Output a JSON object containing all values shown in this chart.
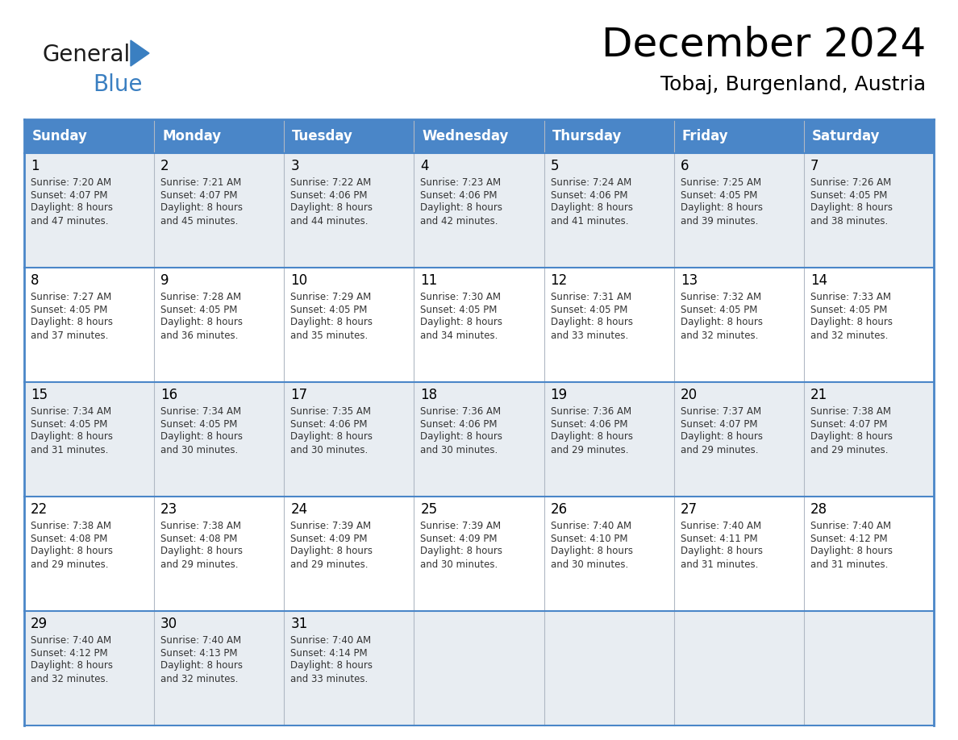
{
  "title": "December 2024",
  "subtitle": "Tobaj, Burgenland, Austria",
  "header_color": "#4a86c8",
  "header_text_color": "#ffffff",
  "row_colors": [
    "#e8edf2",
    "#ffffff"
  ],
  "border_color": "#4a86c8",
  "cell_border_color": "#cccccc",
  "day_names": [
    "Sunday",
    "Monday",
    "Tuesday",
    "Wednesday",
    "Thursday",
    "Friday",
    "Saturday"
  ],
  "days": [
    {
      "day": 1,
      "col": 0,
      "row": 0,
      "sunrise": "7:20 AM",
      "sunset": "4:07 PM",
      "daylight_h": "8 hours",
      "daylight_m": "and 47 minutes."
    },
    {
      "day": 2,
      "col": 1,
      "row": 0,
      "sunrise": "7:21 AM",
      "sunset": "4:07 PM",
      "daylight_h": "8 hours",
      "daylight_m": "and 45 minutes."
    },
    {
      "day": 3,
      "col": 2,
      "row": 0,
      "sunrise": "7:22 AM",
      "sunset": "4:06 PM",
      "daylight_h": "8 hours",
      "daylight_m": "and 44 minutes."
    },
    {
      "day": 4,
      "col": 3,
      "row": 0,
      "sunrise": "7:23 AM",
      "sunset": "4:06 PM",
      "daylight_h": "8 hours",
      "daylight_m": "and 42 minutes."
    },
    {
      "day": 5,
      "col": 4,
      "row": 0,
      "sunrise": "7:24 AM",
      "sunset": "4:06 PM",
      "daylight_h": "8 hours",
      "daylight_m": "and 41 minutes."
    },
    {
      "day": 6,
      "col": 5,
      "row": 0,
      "sunrise": "7:25 AM",
      "sunset": "4:05 PM",
      "daylight_h": "8 hours",
      "daylight_m": "and 39 minutes."
    },
    {
      "day": 7,
      "col": 6,
      "row": 0,
      "sunrise": "7:26 AM",
      "sunset": "4:05 PM",
      "daylight_h": "8 hours",
      "daylight_m": "and 38 minutes."
    },
    {
      "day": 8,
      "col": 0,
      "row": 1,
      "sunrise": "7:27 AM",
      "sunset": "4:05 PM",
      "daylight_h": "8 hours",
      "daylight_m": "and 37 minutes."
    },
    {
      "day": 9,
      "col": 1,
      "row": 1,
      "sunrise": "7:28 AM",
      "sunset": "4:05 PM",
      "daylight_h": "8 hours",
      "daylight_m": "and 36 minutes."
    },
    {
      "day": 10,
      "col": 2,
      "row": 1,
      "sunrise": "7:29 AM",
      "sunset": "4:05 PM",
      "daylight_h": "8 hours",
      "daylight_m": "and 35 minutes."
    },
    {
      "day": 11,
      "col": 3,
      "row": 1,
      "sunrise": "7:30 AM",
      "sunset": "4:05 PM",
      "daylight_h": "8 hours",
      "daylight_m": "and 34 minutes."
    },
    {
      "day": 12,
      "col": 4,
      "row": 1,
      "sunrise": "7:31 AM",
      "sunset": "4:05 PM",
      "daylight_h": "8 hours",
      "daylight_m": "and 33 minutes."
    },
    {
      "day": 13,
      "col": 5,
      "row": 1,
      "sunrise": "7:32 AM",
      "sunset": "4:05 PM",
      "daylight_h": "8 hours",
      "daylight_m": "and 32 minutes."
    },
    {
      "day": 14,
      "col": 6,
      "row": 1,
      "sunrise": "7:33 AM",
      "sunset": "4:05 PM",
      "daylight_h": "8 hours",
      "daylight_m": "and 32 minutes."
    },
    {
      "day": 15,
      "col": 0,
      "row": 2,
      "sunrise": "7:34 AM",
      "sunset": "4:05 PM",
      "daylight_h": "8 hours",
      "daylight_m": "and 31 minutes."
    },
    {
      "day": 16,
      "col": 1,
      "row": 2,
      "sunrise": "7:34 AM",
      "sunset": "4:05 PM",
      "daylight_h": "8 hours",
      "daylight_m": "and 30 minutes."
    },
    {
      "day": 17,
      "col": 2,
      "row": 2,
      "sunrise": "7:35 AM",
      "sunset": "4:06 PM",
      "daylight_h": "8 hours",
      "daylight_m": "and 30 minutes."
    },
    {
      "day": 18,
      "col": 3,
      "row": 2,
      "sunrise": "7:36 AM",
      "sunset": "4:06 PM",
      "daylight_h": "8 hours",
      "daylight_m": "and 30 minutes."
    },
    {
      "day": 19,
      "col": 4,
      "row": 2,
      "sunrise": "7:36 AM",
      "sunset": "4:06 PM",
      "daylight_h": "8 hours",
      "daylight_m": "and 29 minutes."
    },
    {
      "day": 20,
      "col": 5,
      "row": 2,
      "sunrise": "7:37 AM",
      "sunset": "4:07 PM",
      "daylight_h": "8 hours",
      "daylight_m": "and 29 minutes."
    },
    {
      "day": 21,
      "col": 6,
      "row": 2,
      "sunrise": "7:38 AM",
      "sunset": "4:07 PM",
      "daylight_h": "8 hours",
      "daylight_m": "and 29 minutes."
    },
    {
      "day": 22,
      "col": 0,
      "row": 3,
      "sunrise": "7:38 AM",
      "sunset": "4:08 PM",
      "daylight_h": "8 hours",
      "daylight_m": "and 29 minutes."
    },
    {
      "day": 23,
      "col": 1,
      "row": 3,
      "sunrise": "7:38 AM",
      "sunset": "4:08 PM",
      "daylight_h": "8 hours",
      "daylight_m": "and 29 minutes."
    },
    {
      "day": 24,
      "col": 2,
      "row": 3,
      "sunrise": "7:39 AM",
      "sunset": "4:09 PM",
      "daylight_h": "8 hours",
      "daylight_m": "and 29 minutes."
    },
    {
      "day": 25,
      "col": 3,
      "row": 3,
      "sunrise": "7:39 AM",
      "sunset": "4:09 PM",
      "daylight_h": "8 hours",
      "daylight_m": "and 30 minutes."
    },
    {
      "day": 26,
      "col": 4,
      "row": 3,
      "sunrise": "7:40 AM",
      "sunset": "4:10 PM",
      "daylight_h": "8 hours",
      "daylight_m": "and 30 minutes."
    },
    {
      "day": 27,
      "col": 5,
      "row": 3,
      "sunrise": "7:40 AM",
      "sunset": "4:11 PM",
      "daylight_h": "8 hours",
      "daylight_m": "and 31 minutes."
    },
    {
      "day": 28,
      "col": 6,
      "row": 3,
      "sunrise": "7:40 AM",
      "sunset": "4:12 PM",
      "daylight_h": "8 hours",
      "daylight_m": "and 31 minutes."
    },
    {
      "day": 29,
      "col": 0,
      "row": 4,
      "sunrise": "7:40 AM",
      "sunset": "4:12 PM",
      "daylight_h": "8 hours",
      "daylight_m": "and 32 minutes."
    },
    {
      "day": 30,
      "col": 1,
      "row": 4,
      "sunrise": "7:40 AM",
      "sunset": "4:13 PM",
      "daylight_h": "8 hours",
      "daylight_m": "and 32 minutes."
    },
    {
      "day": 31,
      "col": 2,
      "row": 4,
      "sunrise": "7:40 AM",
      "sunset": "4:14 PM",
      "daylight_h": "8 hours",
      "daylight_m": "and 33 minutes."
    }
  ],
  "num_rows": 5,
  "logo_general_color": "#1a1a1a",
  "logo_blue_color": "#3a7fc1",
  "logo_triangle_color": "#3a7fc1"
}
